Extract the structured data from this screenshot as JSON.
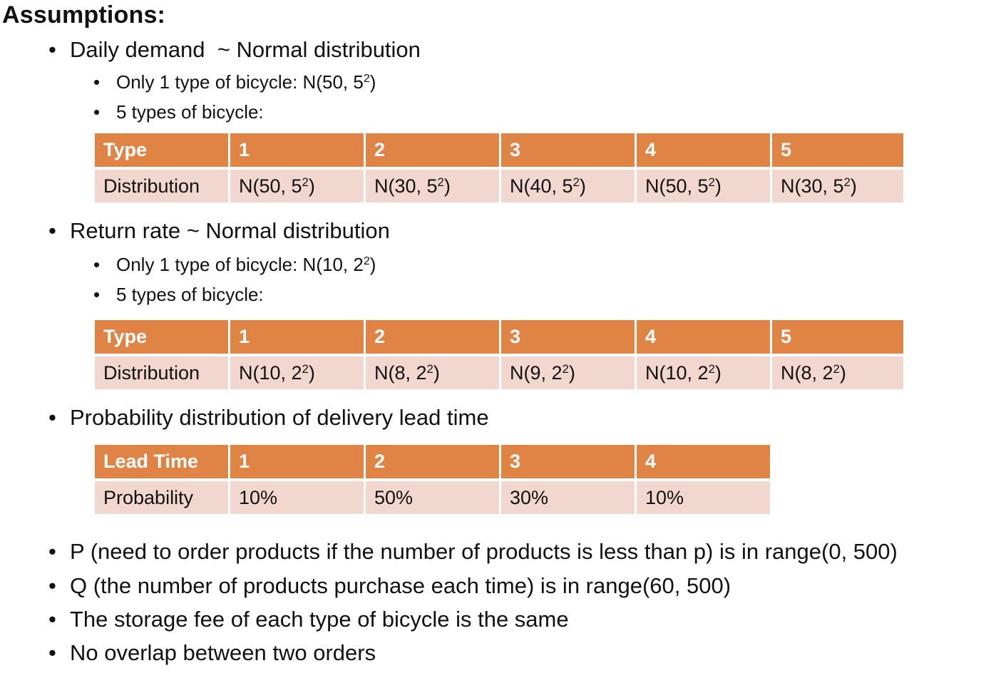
{
  "title": "Assumptions:",
  "demand": {
    "heading": "Daily demand  ~ Normal distribution",
    "single": {
      "text": "Only 1 type of bicycle: N(50, 5",
      "exp": "2",
      "tail": ")"
    },
    "multi_label": "5 types of bicycle:",
    "table": {
      "header": [
        "Type",
        "1",
        "2",
        "3",
        "4",
        "5"
      ],
      "row_label": "Distribution",
      "cells": [
        {
          "base": "N(50, 5",
          "exp": "2",
          "tail": ")"
        },
        {
          "base": "N(30, 5",
          "exp": "2",
          "tail": ")"
        },
        {
          "base": "N(40, 5",
          "exp": "2",
          "tail": ")"
        },
        {
          "base": "N(50, 5",
          "exp": "2",
          "tail": ")"
        },
        {
          "base": "N(30, 5",
          "exp": "2",
          "tail": ")"
        }
      ]
    }
  },
  "return_rate": {
    "heading": "Return rate ~ Normal distribution",
    "single": {
      "text": "Only 1 type of bicycle: N(10, 2",
      "exp": "2",
      "tail": ")"
    },
    "multi_label": "5 types of bicycle:",
    "table": {
      "header": [
        "Type",
        "1",
        "2",
        "3",
        "4",
        "5"
      ],
      "row_label": "Distribution",
      "cells": [
        {
          "base": "N(10, 2",
          "exp": "2",
          "tail": ")"
        },
        {
          "base": "N(8, 2",
          "exp": "2",
          "tail": ")"
        },
        {
          "base": "N(9, 2",
          "exp": "2",
          "tail": ")"
        },
        {
          "base": "N(10, 2",
          "exp": "2",
          "tail": ")"
        },
        {
          "base": "N(8, 2",
          "exp": "2",
          "tail": ")"
        }
      ]
    }
  },
  "lead_time": {
    "heading": "Probability distribution of delivery lead time",
    "table": {
      "header": [
        "Lead Time",
        "1",
        "2",
        "3",
        "4"
      ],
      "row_label": "Probability",
      "cells": [
        "10%",
        "50%",
        "30%",
        "10%"
      ]
    }
  },
  "bullets": [
    "P (need to order products if the number of products is less than p) is in range(0, 500)",
    "Q (the number of products purchase each time) is in range(60, 500)",
    "The storage fee of each type of bicycle is the same",
    "No overlap between two orders"
  ],
  "colors": {
    "header_bg": "#e08446",
    "row_bg": "#f2d7cf",
    "header_text": "#ffffff"
  }
}
